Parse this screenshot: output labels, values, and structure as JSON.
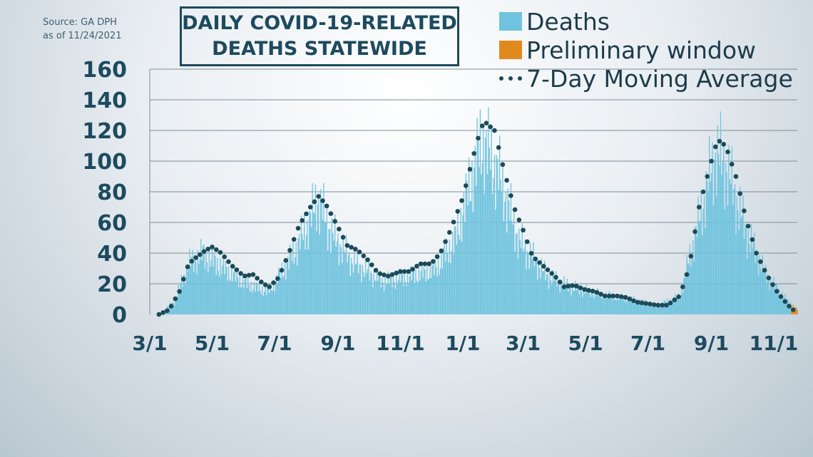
{
  "source": {
    "line1": "Source: GA DPH",
    "line2": "as of 11/24/2021"
  },
  "colors": {
    "deaths": "#6fc3de",
    "preliminary": "#e08a1e",
    "average": "#1b4a58",
    "title": "#1d4a5e",
    "axis_text": "#1d4a5e"
  },
  "legend": {
    "deaths": "Deaths",
    "preliminary": "Preliminary window",
    "average": "7-Day Moving Average"
  },
  "chart_data": {
    "type": "bar",
    "title": [
      "DAILY COVID-19-RELATED",
      "DEATHS STATEWIDE"
    ],
    "x_range": [
      "2020-03-01",
      "2021-11-24"
    ],
    "ylim": [
      0,
      160
    ],
    "yticks": [
      0,
      20,
      40,
      60,
      80,
      100,
      120,
      140,
      160
    ],
    "xticks": [
      {
        "date": "2020-03-01",
        "label": "3/1"
      },
      {
        "date": "2020-05-01",
        "label": "5/1"
      },
      {
        "date": "2020-07-01",
        "label": "7/1"
      },
      {
        "date": "2020-09-01",
        "label": "9/1"
      },
      {
        "date": "2020-11-01",
        "label": "11/1"
      },
      {
        "date": "2021-01-01",
        "label": "1/1"
      },
      {
        "date": "2021-03-01",
        "label": "3/1"
      },
      {
        "date": "2021-05-01",
        "label": "5/1"
      },
      {
        "date": "2021-07-01",
        "label": "7/1"
      },
      {
        "date": "2021-09-01",
        "label": "9/1"
      },
      {
        "date": "2021-11-01",
        "label": "11/1"
      }
    ],
    "grid": true,
    "legend_position": "top-right",
    "series": [
      {
        "name": "7-Day Moving Average",
        "type": "line",
        "points": [
          [
            "2020-03-10",
            0
          ],
          [
            "2020-03-20",
            3
          ],
          [
            "2020-03-30",
            15
          ],
          [
            "2020-04-08",
            33
          ],
          [
            "2020-04-15",
            37
          ],
          [
            "2020-04-25",
            42
          ],
          [
            "2020-05-01",
            44
          ],
          [
            "2020-05-10",
            40
          ],
          [
            "2020-05-20",
            32
          ],
          [
            "2020-06-01",
            25
          ],
          [
            "2020-06-10",
            26
          ],
          [
            "2020-06-20",
            20
          ],
          [
            "2020-06-26",
            18
          ],
          [
            "2020-07-05",
            24
          ],
          [
            "2020-07-15",
            40
          ],
          [
            "2020-07-25",
            58
          ],
          [
            "2020-08-05",
            70
          ],
          [
            "2020-08-13",
            77
          ],
          [
            "2020-08-20",
            72
          ],
          [
            "2020-09-01",
            57
          ],
          [
            "2020-09-10",
            45
          ],
          [
            "2020-09-20",
            42
          ],
          [
            "2020-10-01",
            35
          ],
          [
            "2020-10-10",
            27
          ],
          [
            "2020-10-20",
            25
          ],
          [
            "2020-11-01",
            28
          ],
          [
            "2020-11-10",
            28
          ],
          [
            "2020-11-20",
            33
          ],
          [
            "2020-12-01",
            33
          ],
          [
            "2020-12-10",
            40
          ],
          [
            "2020-12-20",
            55
          ],
          [
            "2021-01-01",
            76
          ],
          [
            "2021-01-10",
            100
          ],
          [
            "2021-01-18",
            120
          ],
          [
            "2021-01-22",
            126
          ],
          [
            "2021-02-01",
            120
          ],
          [
            "2021-02-10",
            95
          ],
          [
            "2021-02-20",
            70
          ],
          [
            "2021-03-01",
            55
          ],
          [
            "2021-03-10",
            38
          ],
          [
            "2021-03-20",
            32
          ],
          [
            "2021-04-01",
            25
          ],
          [
            "2021-04-10",
            18
          ],
          [
            "2021-04-20",
            19
          ],
          [
            "2021-05-01",
            16
          ],
          [
            "2021-05-10",
            15
          ],
          [
            "2021-05-20",
            12
          ],
          [
            "2021-06-01",
            12
          ],
          [
            "2021-06-10",
            11
          ],
          [
            "2021-06-20",
            8
          ],
          [
            "2021-07-01",
            7
          ],
          [
            "2021-07-10",
            6
          ],
          [
            "2021-07-20",
            6
          ],
          [
            "2021-08-01",
            12
          ],
          [
            "2021-08-10",
            30
          ],
          [
            "2021-08-20",
            70
          ],
          [
            "2021-09-01",
            100
          ],
          [
            "2021-09-07",
            114
          ],
          [
            "2021-09-15",
            110
          ],
          [
            "2021-09-25",
            90
          ],
          [
            "2021-10-05",
            62
          ],
          [
            "2021-10-15",
            40
          ],
          [
            "2021-10-25",
            26
          ],
          [
            "2021-11-05",
            14
          ],
          [
            "2021-11-15",
            6
          ],
          [
            "2021-11-20",
            3
          ]
        ]
      }
    ],
    "deaths_peaks": [
      [
        "2020-03-10",
        0
      ],
      [
        "2020-03-25",
        10
      ],
      [
        "2020-04-08",
        40
      ],
      [
        "2020-04-22",
        48
      ],
      [
        "2020-05-10",
        38
      ],
      [
        "2020-06-01",
        25
      ],
      [
        "2020-06-25",
        18
      ],
      [
        "2020-07-15",
        42
      ],
      [
        "2020-08-05",
        75
      ],
      [
        "2020-08-12",
        92
      ],
      [
        "2020-08-25",
        65
      ],
      [
        "2020-09-15",
        42
      ],
      [
        "2020-10-15",
        26
      ],
      [
        "2020-11-10",
        30
      ],
      [
        "2020-12-05",
        36
      ],
      [
        "2020-12-25",
        60
      ],
      [
        "2021-01-10",
        110
      ],
      [
        "2021-01-20",
        138
      ],
      [
        "2021-02-05",
        112
      ],
      [
        "2021-02-25",
        58
      ],
      [
        "2021-03-25",
        30
      ],
      [
        "2021-04-15",
        22
      ],
      [
        "2021-05-15",
        16
      ],
      [
        "2021-06-15",
        12
      ],
      [
        "2021-07-10",
        7
      ],
      [
        "2021-08-01",
        14
      ],
      [
        "2021-08-20",
        75
      ],
      [
        "2021-09-05",
        128
      ],
      [
        "2021-09-15",
        118
      ],
      [
        "2021-10-05",
        66
      ],
      [
        "2021-10-25",
        30
      ],
      [
        "2021-11-15",
        10
      ],
      [
        "2021-11-24",
        4
      ]
    ],
    "preliminary_window": [
      "2021-11-18",
      "2021-11-24"
    ]
  }
}
